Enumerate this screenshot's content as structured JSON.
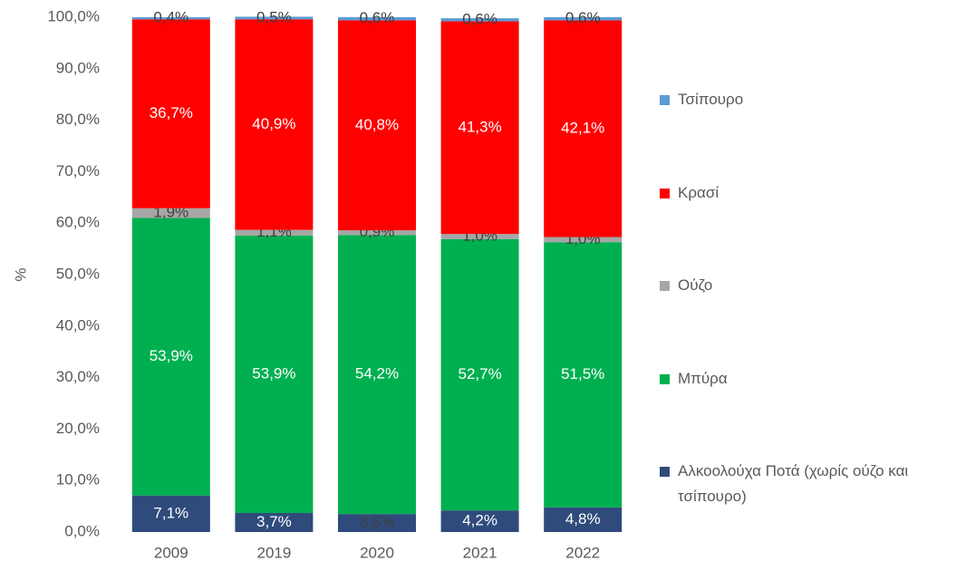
{
  "chart_data": {
    "type": "stacked_bar",
    "y_label": "%",
    "categories": [
      "2009",
      "2019",
      "2020",
      "2021",
      "2022"
    ],
    "series": [
      {
        "name": "Αλκοολούχα Ποτά (χωρίς ούζο και τσίπουρο)",
        "color": "#2f4b7c",
        "values": [
          7.1,
          3.7,
          3.5,
          4.2,
          4.8
        ],
        "value_labels": [
          "7,1%",
          "3,7%",
          "3,5%",
          "4,2%",
          "4,8%"
        ]
      },
      {
        "name": "Μπύρα",
        "color": "#00b050",
        "values": [
          53.9,
          53.9,
          54.2,
          52.7,
          51.5
        ],
        "value_labels": [
          "53,9%",
          "53,9%",
          "54,2%",
          "52,7%",
          "51,5%"
        ]
      },
      {
        "name": "Ούζο",
        "color": "#a6a6a6",
        "values": [
          1.9,
          1.1,
          0.9,
          1.0,
          1.0
        ],
        "value_labels": [
          "1,9%",
          "1,1%",
          "0,9%",
          "1,0%",
          "1,0%"
        ]
      },
      {
        "name": "Κρασί",
        "color": "#ff0000",
        "values": [
          36.7,
          40.9,
          40.8,
          41.3,
          42.1
        ],
        "value_labels": [
          "36,7%",
          "40,9%",
          "40,8%",
          "41,3%",
          "42,1%"
        ]
      },
      {
        "name": "Τσίπουρο",
        "color": "#5b9bd5",
        "values": [
          0.4,
          0.5,
          0.6,
          0.6,
          0.6
        ],
        "value_labels": [
          "0,4%",
          "0,5%",
          "0,6%",
          "0,6%",
          "0,6%"
        ]
      }
    ],
    "ylim": [
      0,
      100
    ],
    "yticks": [
      {
        "value": 0,
        "label": "0,0%"
      },
      {
        "value": 10,
        "label": "10,0%"
      },
      {
        "value": 20,
        "label": "20,0%"
      },
      {
        "value": 30,
        "label": "30,0%"
      },
      {
        "value": 40,
        "label": "40,0%"
      },
      {
        "value": 50,
        "label": "50,0%"
      },
      {
        "value": 60,
        "label": "60,0%"
      },
      {
        "value": 70,
        "label": "70,0%"
      },
      {
        "value": 80,
        "label": "80,0%"
      },
      {
        "value": 90,
        "label": "90,0%"
      },
      {
        "value": 100,
        "label": "100,0%"
      }
    ],
    "legend": "right"
  }
}
